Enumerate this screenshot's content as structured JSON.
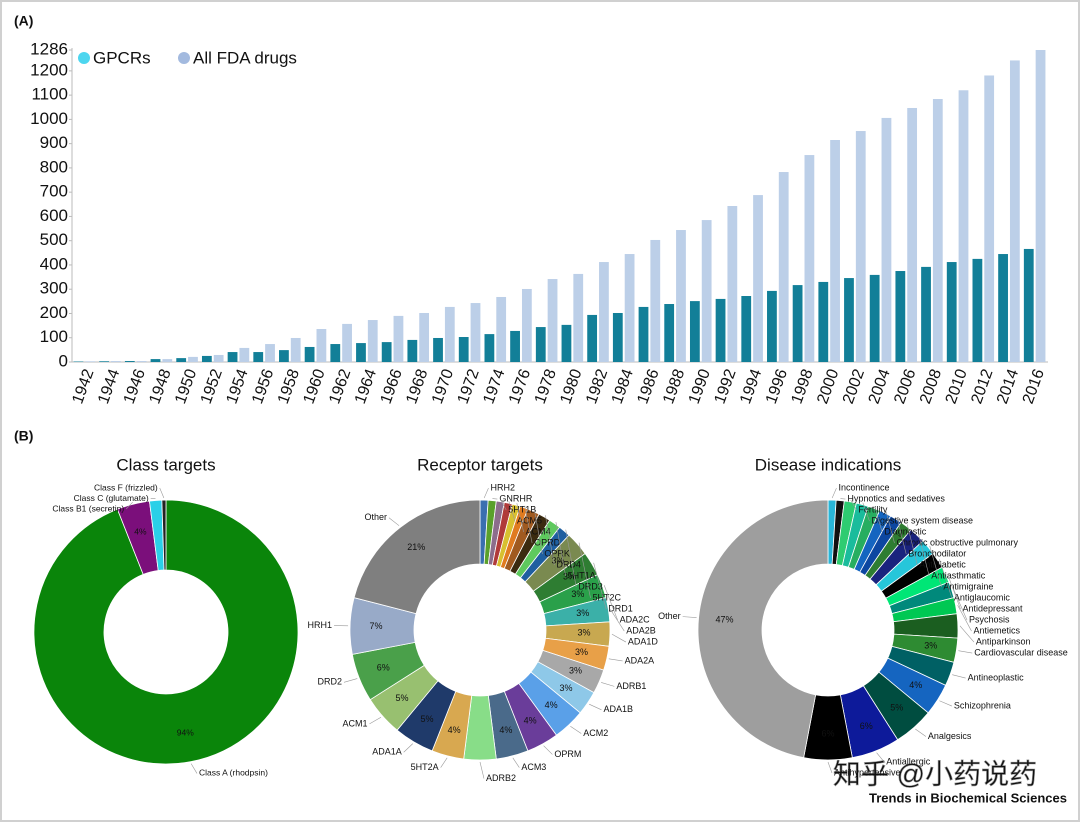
{
  "panel_labels": [
    "(A)",
    "(B)"
  ],
  "watermark": "知乎 @小药说药",
  "journal": "Trends in Biochemical Sciences",
  "chart_data": [
    {
      "type": "bar",
      "categories": [
        "1942",
        "1944",
        "1946",
        "1948",
        "1950",
        "1952",
        "1954",
        "1956",
        "1958",
        "1960",
        "1962",
        "1964",
        "1966",
        "1968",
        "1970",
        "1972",
        "1974",
        "1976",
        "1978",
        "1980",
        "1982",
        "1984",
        "1986",
        "1988",
        "1990",
        "1992",
        "1994",
        "1996",
        "1998",
        "2000",
        "2002",
        "2004",
        "2006",
        "2008",
        "2010",
        "2012",
        "2014",
        "2016"
      ],
      "series": [
        {
          "name": "GPCRs",
          "color": "#127f98",
          "legend_color": "#4dd6ef",
          "values": [
            2,
            3,
            4,
            12,
            16,
            25,
            41,
            41,
            49,
            62,
            74,
            78,
            82,
            91,
            99,
            103,
            115,
            128,
            144,
            153,
            194,
            202,
            227,
            239,
            251,
            260,
            272,
            293,
            317,
            330,
            346,
            359,
            375,
            392,
            412,
            425,
            445,
            466
          ]
        },
        {
          "name": "All FDA drugs",
          "color": "#bccfe8",
          "legend_color": "#a3badf",
          "values": [
            3,
            4,
            4,
            12,
            21,
            29,
            58,
            74,
            99,
            136,
            157,
            173,
            190,
            202,
            227,
            243,
            268,
            301,
            342,
            363,
            412,
            445,
            503,
            544,
            585,
            643,
            688,
            783,
            853,
            915,
            952,
            1006,
            1047,
            1084,
            1120,
            1181,
            1243,
            1286
          ]
        }
      ],
      "ylim": [
        0,
        1286
      ],
      "yticks": [
        0,
        100,
        200,
        300,
        400,
        500,
        600,
        700,
        800,
        900,
        1000,
        1100,
        1200,
        1286
      ]
    },
    {
      "type": "pie",
      "title": "Class targets",
      "categories": [
        "Class A (rhodpsin)",
        "Class B1 (secretin)",
        "Class C (glutamate)",
        "Class F (frizzled)"
      ],
      "values": [
        94,
        4,
        1.5,
        0.5
      ],
      "value_labels": [
        "94%",
        "4%",
        null,
        null
      ],
      "colors": [
        "#0a850a",
        "#7b0f7b",
        "#2ad0e8",
        "#222222"
      ]
    },
    {
      "type": "pie",
      "title": "Receptor targets",
      "categories": [
        "HRH2",
        "GNRHR",
        "5HT1B",
        "ACM5",
        "ACM4",
        "OPRD",
        "OPRK",
        "DRD4",
        "5HT1A",
        "DRD3",
        "5HT2C",
        "DRD1",
        "ADA2C",
        "ADA2B",
        "ADA1D",
        "ADA2A",
        "ADRB1",
        "ADA1B",
        "ACM2",
        "OPRM",
        "ACM3",
        "ADRB2",
        "5HT2A",
        "ADA1A",
        "ACM1",
        "DRD2",
        "HRH1",
        "Other"
      ],
      "values": [
        1,
        1,
        1,
        1,
        1,
        1,
        1.5,
        1.5,
        1.5,
        1.5,
        3,
        3,
        3,
        3,
        3,
        3,
        3,
        3,
        4,
        4,
        4,
        4,
        4,
        5,
        5,
        6,
        7,
        21
      ],
      "value_labels": [
        null,
        null,
        null,
        null,
        null,
        null,
        null,
        null,
        null,
        null,
        "3%",
        "3%",
        "3%",
        "3%",
        "3%",
        "3%",
        "3%",
        "3%",
        "4%",
        "4%",
        "4%",
        null,
        "4%",
        "5%",
        "5%",
        "6%",
        "7%",
        "21%"
      ],
      "colors": [
        "#3a6fb0",
        "#5aa02c",
        "#8c6d8c",
        "#b03a3a",
        "#d8c030",
        "#e07b20",
        "#a05a20",
        "#3b2b10",
        "#5ec95e",
        "#1f5fa0",
        "#7a8a50",
        "#2e7d32",
        "#2aa04a",
        "#3bb0a8",
        "#c8a850",
        "#e8a048",
        "#a8a8a8",
        "#8ec8e8",
        "#5aa0e8",
        "#6a3d9a",
        "#4a6a8a",
        "#88dd88",
        "#d8a850",
        "#1f3a6a",
        "#98c070",
        "#4aa04a",
        "#98aac8",
        "#7f7f7f"
      ]
    },
    {
      "type": "pie",
      "title": "Disease indications",
      "categories": [
        "Incontinence",
        "Hypnotics and sedatives",
        "Fertility",
        "Digestive system disease",
        "Diagnostic",
        "Chronic obstructive pulmonary",
        "Bronchodilator",
        "Antidiabetic",
        "Antiasthmatic",
        "Antimigraine",
        "Antiglaucomic",
        "Antidepressant",
        "Psychosis",
        "Antiemetics",
        "Antiparkinson",
        "Cardiovascular disease",
        "Antineoplastic",
        "Schizophrenia",
        "Analgesics",
        "Antiallergic",
        "Antihypertensive",
        "Other"
      ],
      "values": [
        1,
        1,
        1.5,
        1.5,
        1.5,
        1.5,
        1.5,
        1.5,
        2,
        2,
        2,
        2,
        2,
        2,
        3,
        3,
        3,
        4,
        5,
        6,
        6,
        47
      ],
      "value_labels": [
        null,
        null,
        null,
        null,
        null,
        null,
        null,
        null,
        null,
        null,
        null,
        null,
        null,
        null,
        null,
        "3%",
        null,
        "4%",
        "5%",
        "6%",
        "6%",
        "47%"
      ],
      "colors": [
        "#29b6d8",
        "#111111",
        "#2ecc71",
        "#1abc9c",
        "#27ae60",
        "#1565c0",
        "#0d47a1",
        "#2e7d32",
        "#1a237e",
        "#26c6da",
        "#000000",
        "#00e676",
        "#00897b",
        "#00c853",
        "#1b5e20",
        "#2e8b32",
        "#006064",
        "#1565c0",
        "#004d40",
        "#0d1a9a",
        "#000000",
        "#9e9e9e"
      ]
    }
  ]
}
